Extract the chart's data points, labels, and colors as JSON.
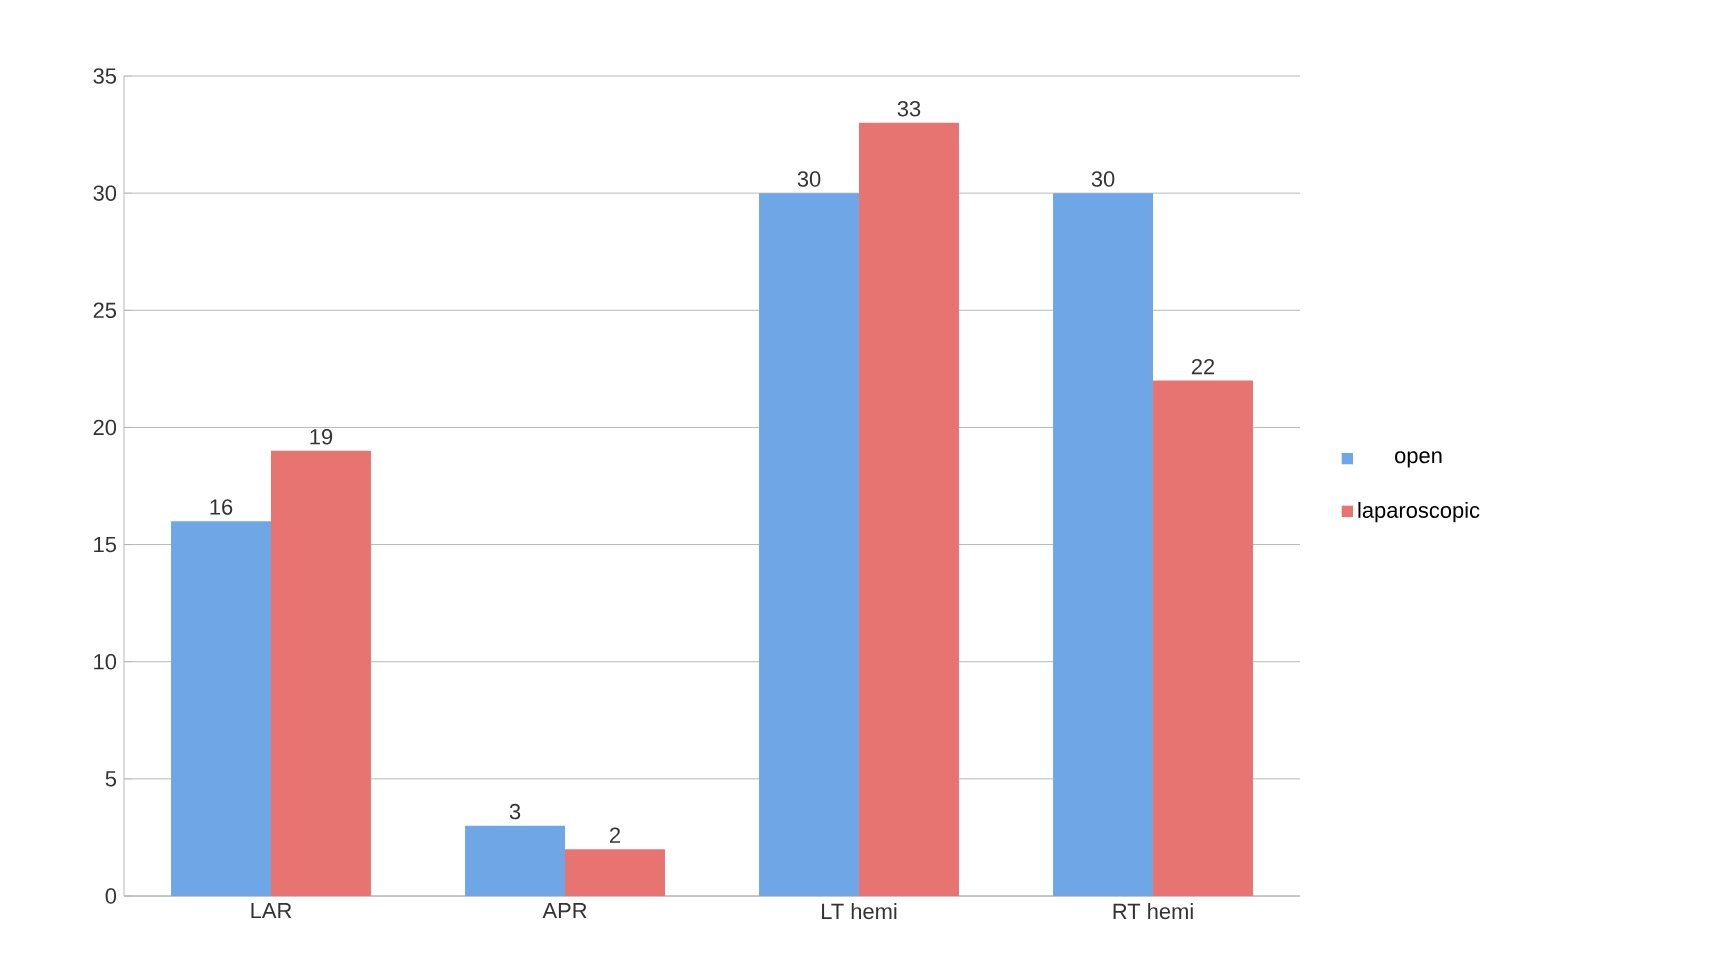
{
  "chart_data": {
    "type": "bar",
    "categories": [
      "LAR",
      "APR",
      "LT hemi",
      "RT hemi"
    ],
    "series": [
      {
        "name": "open",
        "color": "#6fa6e6",
        "values": [
          16,
          3,
          30,
          30
        ]
      },
      {
        "name": "laparoscopic",
        "color": "#e87472",
        "values": [
          19,
          2,
          33,
          22
        ]
      }
    ],
    "ylim": [
      0,
      35
    ],
    "yticks": [
      0,
      5,
      10,
      15,
      20,
      25,
      30,
      35
    ],
    "grid": "y",
    "legend": "right",
    "data_labels": true
  }
}
